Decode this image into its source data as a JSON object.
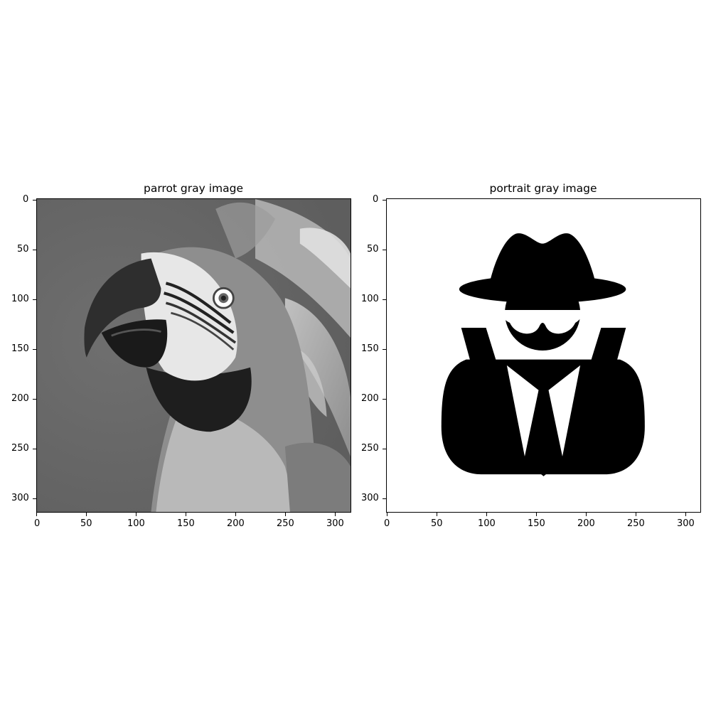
{
  "panels": [
    {
      "title": "parrot gray image",
      "x_ticks": [
        "0",
        "50",
        "100",
        "150",
        "200",
        "250",
        "300"
      ],
      "y_ticks": [
        "0",
        "50",
        "100",
        "150",
        "200",
        "250",
        "300"
      ]
    },
    {
      "title": "portrait gray image",
      "x_ticks": [
        "0",
        "50",
        "100",
        "150",
        "200",
        "250",
        "300"
      ],
      "y_ticks": [
        "0",
        "50",
        "100",
        "150",
        "200",
        "250",
        "300"
      ]
    }
  ]
}
